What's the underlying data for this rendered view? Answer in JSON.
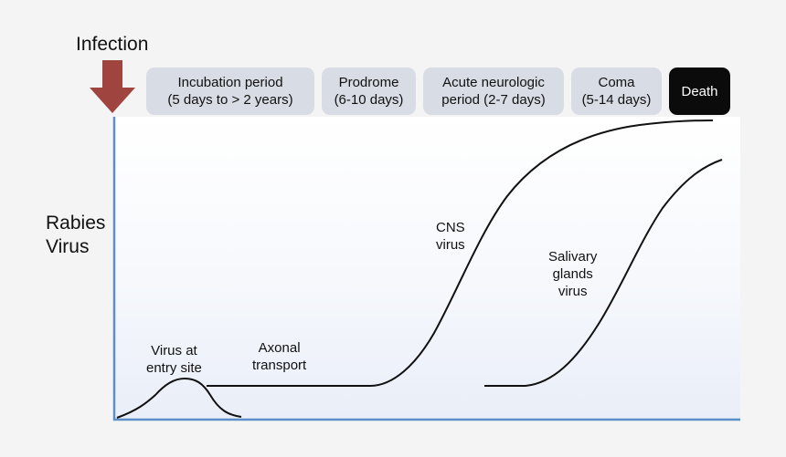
{
  "infection": {
    "label": "Infection",
    "arrow_color": "#a0443f"
  },
  "y_axis_label": "Rabies\nVirus",
  "phases": [
    {
      "label": "Incubation period\n(5 days to > 2 years)"
    },
    {
      "label": "Prodrome\n(6-10 days)"
    },
    {
      "label": "Acute neurologic\nperiod (2-7 days)"
    },
    {
      "label": "Coma\n(5-14 days)"
    },
    {
      "label": "Death"
    }
  ],
  "annotations": {
    "virus_entry": "Virus at\nentry site",
    "axonal": "Axonal\ntransport",
    "cns": "CNS\nvirus",
    "salivary": "Salivary\nglands\nvirus"
  },
  "colors": {
    "axis": "#5b8fc7",
    "phase_box": "#d8dce4",
    "death_box": "#0b0b0b",
    "curve": "#111111"
  }
}
